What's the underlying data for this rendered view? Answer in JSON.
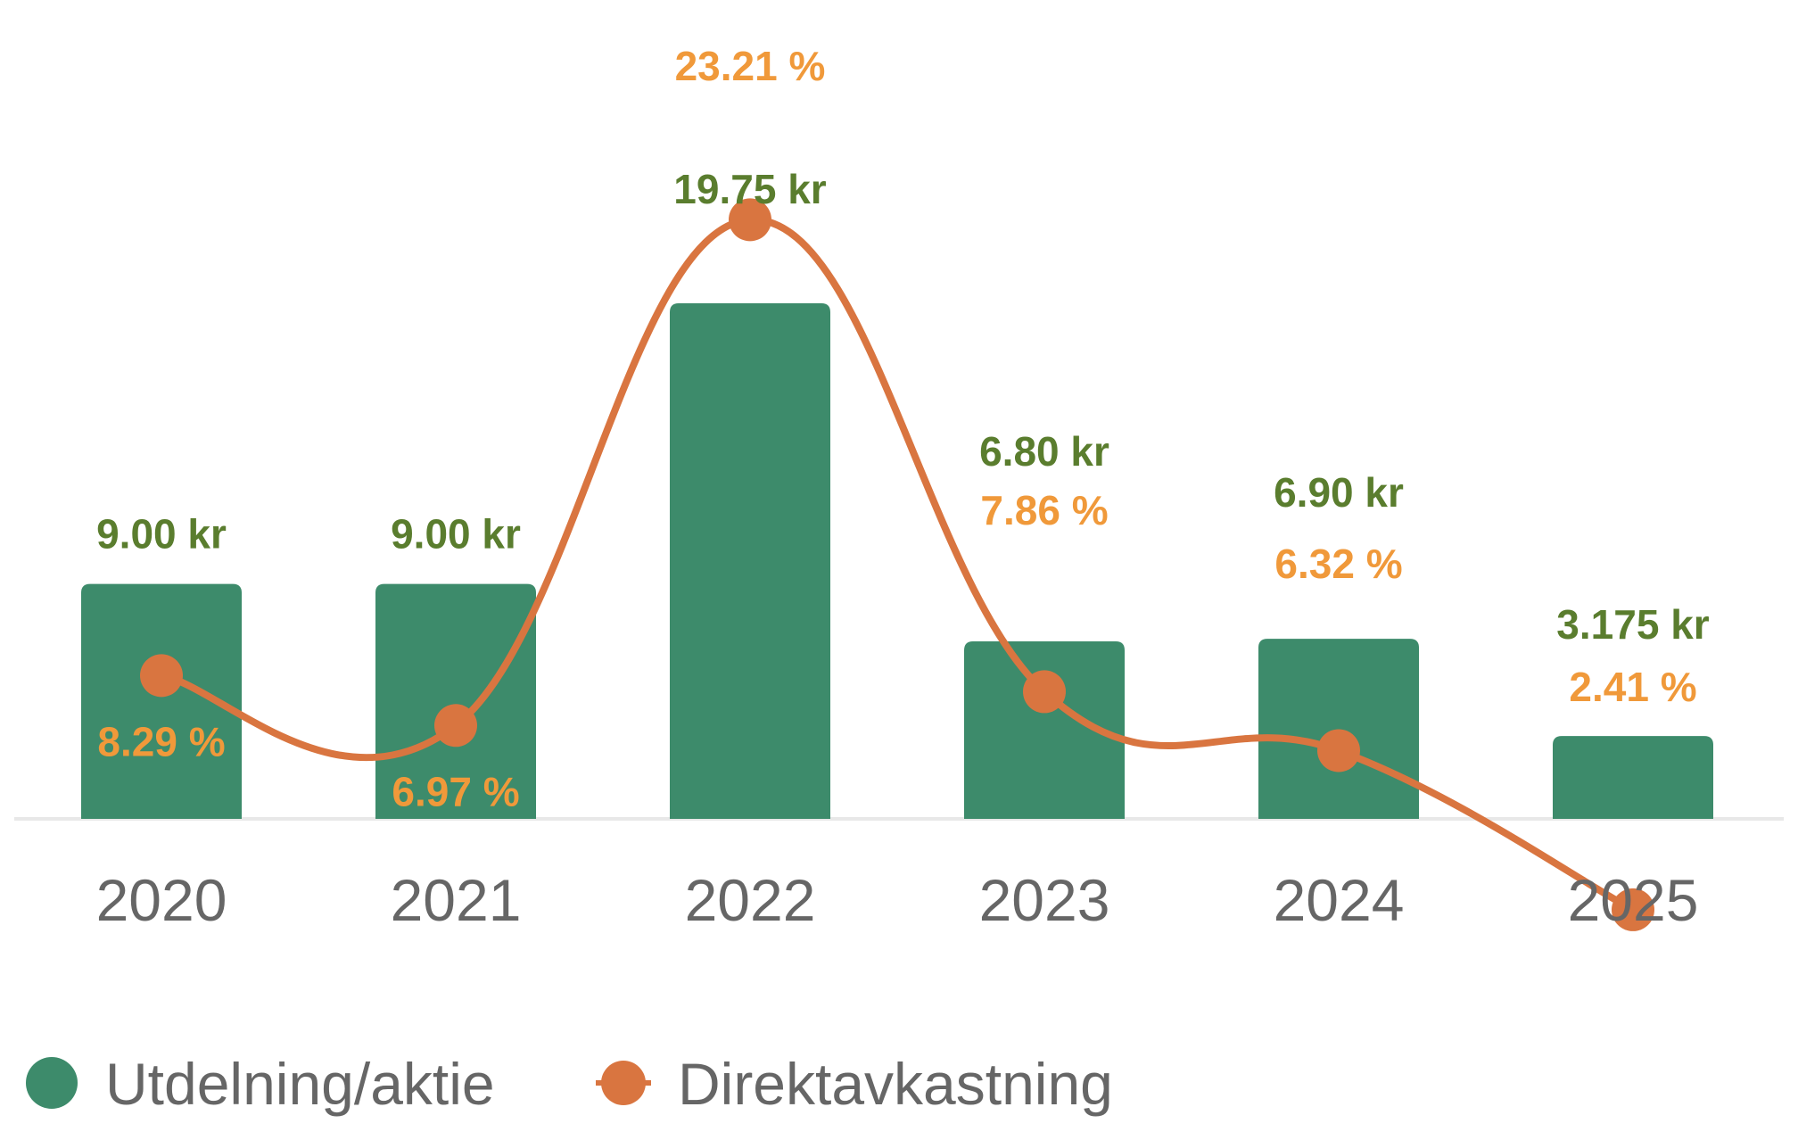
{
  "chart_data": {
    "type": "bar",
    "categories": [
      "2020",
      "2021",
      "2022",
      "2023",
      "2024",
      "2025"
    ],
    "series": [
      {
        "name": "Utdelning/aktie",
        "type": "bar",
        "values": [
          9.0,
          9.0,
          19.75,
          6.8,
          6.9,
          3.175
        ],
        "labels": [
          "9.00 kr",
          "9.00 kr",
          "19.75 kr",
          "6.80 kr",
          "6.90 kr",
          "3.175 kr"
        ],
        "color": "#3d8b6b",
        "label_color": "#5a7d2e"
      },
      {
        "name": "Direktavkastning",
        "type": "line",
        "values": [
          8.29,
          6.97,
          23.21,
          7.86,
          6.32,
          2.41
        ],
        "labels": [
          "8.29 %",
          "6.97 %",
          "23.21 %",
          "7.86 %",
          "6.32 %",
          "2.41 %"
        ],
        "color": "#d97540",
        "label_color": "#f0993a"
      }
    ],
    "legend": "bottom-left",
    "grid": false,
    "title": "",
    "xlabel": "",
    "ylabel": ""
  }
}
